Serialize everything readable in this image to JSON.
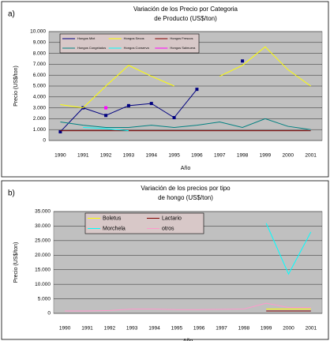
{
  "chart_data": [
    {
      "type": "line",
      "panel_label": "a)",
      "title": [
        "Variación de los Precio por Categoria",
        "de Producto (US$/ton)"
      ],
      "y_label": "Precio (US$/ton)",
      "x_label": "Año",
      "categories": [
        "1990",
        "1991",
        "1992",
        "1993",
        "1994",
        "1995",
        "1996",
        "1997",
        "1998",
        "1999",
        "2000",
        "2001"
      ],
      "ylim": [
        0,
        10000
      ],
      "yticks": [
        0,
        {
          "value": 1000,
          "label": "1.000"
        },
        {
          "value": 2000,
          "label": "2.000"
        },
        {
          "value": 3000,
          "label": "3.000"
        },
        {
          "value": 4000,
          "label": "4.000"
        },
        {
          "value": 5000,
          "label": "5.000"
        },
        {
          "value": 6000,
          "label": "6.000"
        },
        {
          "value": 7000,
          "label": "7.000"
        },
        {
          "value": 8000,
          "label": "8.000"
        },
        {
          "value": 9000,
          "label": "9.000"
        },
        {
          "value": 10000,
          "label": "10.000"
        }
      ],
      "grid": true,
      "series": [
        {
          "name": "Hongos Mixt",
          "color": "#000080",
          "marker": "square",
          "values": [
            800,
            3000,
            2300,
            3200,
            3400,
            2100,
            4700,
            null,
            7300,
            null,
            null,
            null
          ]
        },
        {
          "name": "Hongos Secos",
          "color": "#ffff00",
          "values": [
            3300,
            3000,
            5000,
            6900,
            5900,
            5000,
            null,
            5900,
            6900,
            8600,
            6500,
            5000
          ]
        },
        {
          "name": "Hongos Frescos",
          "color": "#800000",
          "values": [
            900,
            900,
            900,
            900,
            900,
            900,
            900,
            900,
            900,
            900,
            900,
            900
          ]
        },
        {
          "name": "Hongos Congelados",
          "color": "#008080",
          "values": [
            1700,
            1400,
            1200,
            1200,
            1400,
            1200,
            1400,
            1700,
            1200,
            2000,
            1300,
            1000
          ]
        },
        {
          "name": "Hongos Conserva",
          "color": "#00ffff",
          "values": [
            null,
            1200,
            1100,
            900,
            null,
            null,
            null,
            null,
            null,
            null,
            null,
            null
          ]
        },
        {
          "name": "Hongos Salmuera",
          "color": "#ff00ff",
          "marker": "square",
          "values": [
            null,
            null,
            3000,
            null,
            null,
            null,
            null,
            null,
            null,
            null,
            null,
            null
          ]
        }
      ]
    },
    {
      "type": "line",
      "panel_label": "b)",
      "title": [
        "Variación de los precios por tipo",
        "de hongo (US$/ton)"
      ],
      "y_label": "Precio (US$/ton)",
      "x_label": "Año",
      "categories": [
        "1990",
        "1991",
        "1992",
        "1993",
        "1994",
        "1995",
        "1996",
        "1997",
        "1998",
        "1999",
        "2000",
        "2001"
      ],
      "ylim": [
        0,
        35000
      ],
      "yticks": [
        0,
        {
          "value": 5000,
          "label": "5.000"
        },
        {
          "value": 10000,
          "label": "10.000"
        },
        {
          "value": 15000,
          "label": "15.000"
        },
        {
          "value": 20000,
          "label": "20.000"
        },
        {
          "value": 25000,
          "label": "25.000"
        },
        {
          "value": 30000,
          "label": "30.000"
        },
        {
          "value": 35000,
          "label": "35.000"
        }
      ],
      "grid": true,
      "series": [
        {
          "name": "Boletus",
          "color": "#ffff00",
          "values": [
            null,
            null,
            null,
            null,
            null,
            null,
            null,
            null,
            null,
            1500,
            1500,
            1500
          ]
        },
        {
          "name": "Lactario",
          "color": "#800000",
          "values": [
            null,
            null,
            null,
            null,
            null,
            null,
            null,
            null,
            null,
            800,
            800,
            800
          ]
        },
        {
          "name": "Morchela",
          "color": "#00ffff",
          "values": [
            null,
            null,
            null,
            null,
            null,
            null,
            null,
            null,
            null,
            31000,
            13500,
            28000
          ]
        },
        {
          "name": "otros",
          "color": "#ff99cc",
          "values": [
            800,
            800,
            1000,
            1500,
            1500,
            1300,
            1300,
            1400,
            1500,
            3500,
            2000,
            2000
          ]
        }
      ]
    }
  ]
}
